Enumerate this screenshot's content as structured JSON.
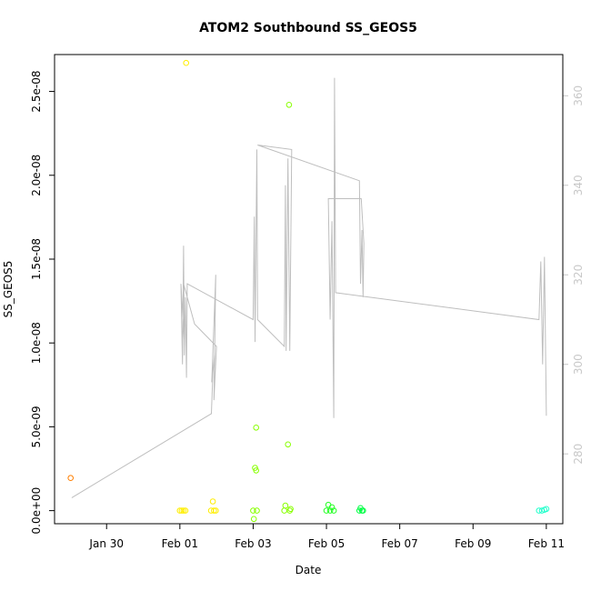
{
  "chart_data": {
    "type": "scatter",
    "title": "ATOM2 Southbound SS_GEOS5",
    "xlabel": "Date",
    "ylabel": "SS_GEOS5",
    "x_tick_labels": [
      "Jan 30",
      "Feb 01",
      "Feb 03",
      "Feb 05",
      "Feb 07",
      "Feb 09",
      "Feb 11"
    ],
    "x_tick_days": [
      -1,
      1,
      3,
      5,
      7,
      9,
      11
    ],
    "y_ticks": [
      0,
      5e-09,
      1e-08,
      1.5e-08,
      2e-08,
      2.5e-08
    ],
    "y_tick_labels": [
      "0.0e+00",
      "5.0e-09",
      "1.0e-08",
      "1.5e-08",
      "2.0e-08",
      "2.5e-08"
    ],
    "ylim": [
      -7.8e-10,
      2.72e-08
    ],
    "xlim_days": [
      -2.42,
      11.45
    ],
    "right_axis": {
      "ticks": [
        280,
        300,
        320,
        340,
        360
      ],
      "ylim": [
        264.4,
        369.2
      ],
      "color": "#c8c8c8"
    },
    "points": [
      {
        "day": -1.98,
        "y": 1.95e-09,
        "color": "#ff7f00"
      },
      {
        "day": 1.0,
        "y": 0.0,
        "color": "#ffee00"
      },
      {
        "day": 1.05,
        "y": 0.0,
        "color": "#ffee00"
      },
      {
        "day": 1.1,
        "y": 0.0,
        "color": "#ffee00"
      },
      {
        "day": 1.15,
        "y": 0.0,
        "color": "#ffee00"
      },
      {
        "day": 1.17,
        "y": 2.67e-08,
        "color": "#ffee00"
      },
      {
        "day": 1.85,
        "y": 0.0,
        "color": "#ffee00"
      },
      {
        "day": 1.9,
        "y": 5.5e-10,
        "color": "#ffee00"
      },
      {
        "day": 1.93,
        "y": 0.0,
        "color": "#ffee00"
      },
      {
        "day": 1.98,
        "y": 0.0,
        "color": "#ffee00"
      },
      {
        "day": 3.0,
        "y": 0.0,
        "color": "#88ff00"
      },
      {
        "day": 3.02,
        "y": -5e-10,
        "color": "#88ff00"
      },
      {
        "day": 3.05,
        "y": 2.55e-09,
        "color": "#88ff00"
      },
      {
        "day": 3.08,
        "y": 2.4e-09,
        "color": "#88ff00"
      },
      {
        "day": 3.08,
        "y": 4.95e-09,
        "color": "#88ff00"
      },
      {
        "day": 3.1,
        "y": 0.0,
        "color": "#88ff00"
      },
      {
        "day": 3.85,
        "y": 0.0,
        "color": "#88ff00"
      },
      {
        "day": 3.88,
        "y": 3e-10,
        "color": "#88ff00"
      },
      {
        "day": 3.95,
        "y": 3.95e-09,
        "color": "#88ff00"
      },
      {
        "day": 3.98,
        "y": 2.42e-08,
        "color": "#88ff00"
      },
      {
        "day": 4.0,
        "y": 0.0,
        "color": "#88ff00"
      },
      {
        "day": 4.02,
        "y": 1e-10,
        "color": "#88ff00"
      },
      {
        "day": 5.0,
        "y": 0.0,
        "color": "#22ff22"
      },
      {
        "day": 5.05,
        "y": 3.5e-10,
        "color": "#22ff22"
      },
      {
        "day": 5.1,
        "y": 0.0,
        "color": "#22ff22"
      },
      {
        "day": 5.15,
        "y": 2e-10,
        "color": "#22ff22"
      },
      {
        "day": 5.2,
        "y": 0.0,
        "color": "#22ff22"
      },
      {
        "day": 5.9,
        "y": 0.0,
        "color": "#00ff44"
      },
      {
        "day": 5.93,
        "y": 1.5e-10,
        "color": "#00ff44"
      },
      {
        "day": 5.97,
        "y": 0.0,
        "color": "#00ff44"
      },
      {
        "day": 6.0,
        "y": 0.0,
        "color": "#00ff44"
      },
      {
        "day": 10.8,
        "y": 0.0,
        "color": "#22ffcc"
      },
      {
        "day": 10.88,
        "y": 0.0,
        "color": "#22ffcc"
      },
      {
        "day": 10.95,
        "y": 5e-11,
        "color": "#22ffcc"
      },
      {
        "day": 11.0,
        "y": 1e-10,
        "color": "#22ffcc"
      }
    ],
    "line_series": {
      "color": "#bebebe",
      "points": [
        [
          -1.95,
          270.2
        ],
        [
          1.86,
          289.0
        ],
        [
          1.9,
          298.0
        ],
        [
          1.95,
          302.5
        ],
        [
          1.87,
          296.0
        ],
        [
          1.98,
          320.0
        ],
        [
          1.93,
          292.0
        ],
        [
          2.0,
          304.0
        ],
        [
          1.4,
          309.0
        ],
        [
          1.1,
          318.0
        ],
        [
          1.12,
          305.0
        ],
        [
          1.03,
          318.0
        ],
        [
          1.07,
          300.0
        ],
        [
          1.1,
          326.5
        ],
        [
          1.12,
          302.0
        ],
        [
          1.15,
          315.0
        ],
        [
          1.18,
          297.0
        ],
        [
          1.2,
          318.0
        ],
        [
          3.0,
          310.0
        ],
        [
          3.03,
          333.0
        ],
        [
          3.05,
          305.0
        ],
        [
          3.1,
          348.0
        ],
        [
          3.12,
          310.0
        ],
        [
          3.85,
          304.0
        ],
        [
          3.88,
          340.0
        ],
        [
          3.9,
          303.0
        ],
        [
          3.95,
          346.0
        ],
        [
          4.0,
          303.0
        ],
        [
          4.05,
          348.0
        ],
        [
          3.12,
          349.0
        ],
        [
          5.9,
          341.0
        ],
        [
          5.93,
          318.0
        ],
        [
          5.97,
          330.0
        ],
        [
          6.0,
          315.0
        ],
        [
          6.02,
          327.0
        ],
        [
          5.95,
          337.0
        ],
        [
          5.05,
          337.0
        ],
        [
          5.1,
          310.0
        ],
        [
          5.15,
          332.0
        ],
        [
          5.2,
          288.0
        ],
        [
          5.22,
          364.0
        ],
        [
          5.25,
          316.0
        ],
        [
          10.8,
          310.0
        ],
        [
          10.85,
          323.0
        ],
        [
          10.9,
          300.0
        ],
        [
          10.95,
          324.0
        ],
        [
          11.0,
          288.5
        ]
      ]
    }
  }
}
